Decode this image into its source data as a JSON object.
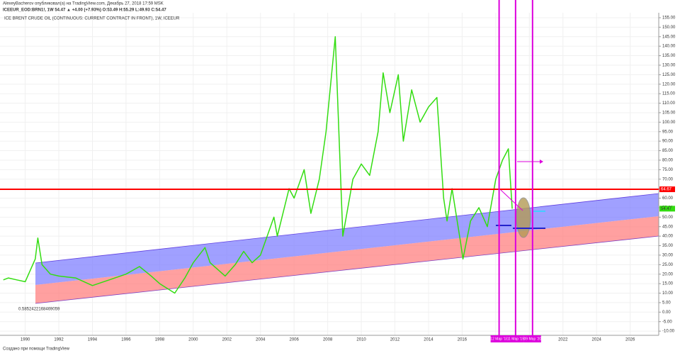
{
  "chart_data": {
    "type": "line",
    "header": "AlexeyBacherov опубликовал(а) на TradingView.com, Декабрь 27, 2018 17:59 MSK",
    "symbol_line": "ICEEUR_EOD:BRN1!, 1W 54.47 ▲ +4.00 (+7.93%) O:53.49 H:55.29 L:49.93 C:54.47",
    "title": "ICE BRENT CRUDE OIL (CONTINUOUS: CURRENT CONTRACT IN FRONT), 1W, ICEEUR",
    "annotation": "0.5852422168469059",
    "footer": "Создано при помощи TradingView",
    "xlim": [
      1988.5,
      2027.7
    ],
    "ylim": [
      -12.2,
      157.6
    ],
    "grid": true,
    "xticks": [
      1990,
      1992,
      1994,
      1996,
      1998,
      2000,
      2002,
      2004,
      2006,
      2008,
      2010,
      2012,
      2014,
      2016,
      2018,
      2020,
      2022,
      2024,
      2026
    ],
    "yticks": [
      {
        "value": -10,
        "label": "-10.00"
      },
      {
        "value": -5,
        "label": "-5.00"
      },
      {
        "value": 0,
        "label": "0.00"
      },
      {
        "value": 5,
        "label": "5.00"
      },
      {
        "value": 10,
        "label": "10.00"
      },
      {
        "value": 15,
        "label": "15.00"
      },
      {
        "value": 20,
        "label": "20.00"
      },
      {
        "value": 25,
        "label": "25.00"
      },
      {
        "value": 30,
        "label": "30.00"
      },
      {
        "value": 35,
        "label": "35.00"
      },
      {
        "value": 40,
        "label": "40.00"
      },
      {
        "value": 45,
        "label": "45.00"
      },
      {
        "value": 50,
        "label": "50.00"
      },
      {
        "value": 55,
        "label": "55.00"
      },
      {
        "value": 60,
        "label": "60.00"
      },
      {
        "value": 65,
        "label": "65.00"
      },
      {
        "value": 70,
        "label": "70.00"
      },
      {
        "value": 75,
        "label": "75.00"
      },
      {
        "value": 80,
        "label": "80.00"
      },
      {
        "value": 85,
        "label": "85.00"
      },
      {
        "value": 90,
        "label": "90.00"
      },
      {
        "value": 95,
        "label": "95.00"
      },
      {
        "value": 100,
        "label": "100.00"
      },
      {
        "value": 105,
        "label": "105.00"
      },
      {
        "value": 110,
        "label": "110.00"
      },
      {
        "value": 115,
        "label": "115.00"
      },
      {
        "value": 120,
        "label": "120.00"
      },
      {
        "value": 125,
        "label": "125.00"
      },
      {
        "value": 130,
        "label": "130.00"
      },
      {
        "value": 135,
        "label": "135.00"
      },
      {
        "value": 140,
        "label": "140.00"
      },
      {
        "value": 145,
        "label": "145.00"
      },
      {
        "value": 150,
        "label": "150.00"
      },
      {
        "value": 155,
        "label": "155.00"
      }
    ],
    "series": [
      {
        "name": "BRN1!",
        "color": "#33dd11",
        "x": [
          1988.7,
          1989,
          1989.5,
          1990,
          1990.6,
          1990.75,
          1991,
          1991.5,
          1992,
          1993,
          1994,
          1995,
          1996,
          1996.8,
          1997.5,
          1998,
          1998.9,
          1999.5,
          2000,
          2000.7,
          2001,
          2001.9,
          2002.5,
          2003,
          2003.5,
          2004,
          2004.8,
          2005,
          2005.7,
          2006,
          2006.6,
          2007,
          2007.5,
          2007.9,
          2008.45,
          2008.9,
          2009.5,
          2010,
          2010.5,
          2011,
          2011.3,
          2011.7,
          2012.2,
          2012.5,
          2013,
          2013.5,
          2014,
          2014.5,
          2014.9,
          2015.1,
          2015.4,
          2015.9,
          2016.05,
          2016.5,
          2017,
          2017.5,
          2018,
          2018.4,
          2018.75,
          2018.98
        ],
        "values": [
          17,
          18,
          17,
          16,
          28,
          39,
          25,
          20,
          19,
          18,
          14,
          17,
          20,
          24,
          19,
          15,
          10,
          18,
          26,
          34,
          26,
          19,
          25,
          32,
          26,
          30,
          50,
          40,
          65,
          60,
          75,
          52,
          70,
          95,
          145,
          40,
          70,
          78,
          72,
          95,
          126,
          105,
          125,
          90,
          117,
          100,
          108,
          113,
          60,
          48,
          65,
          37,
          28,
          48,
          55,
          45,
          70,
          80,
          86,
          54.47
        ]
      }
    ],
    "hline": {
      "value": 64.67,
      "color": "#ff0000"
    },
    "vlines": [
      {
        "x": 2018.2,
        "label": "12 Мар '18"
      },
      {
        "x": 2019.18,
        "label": "11 Мар '19"
      },
      {
        "x": 2020.19,
        "label": "09 Мар '20"
      }
    ],
    "vline_color": "#dd00dd"
  }
}
